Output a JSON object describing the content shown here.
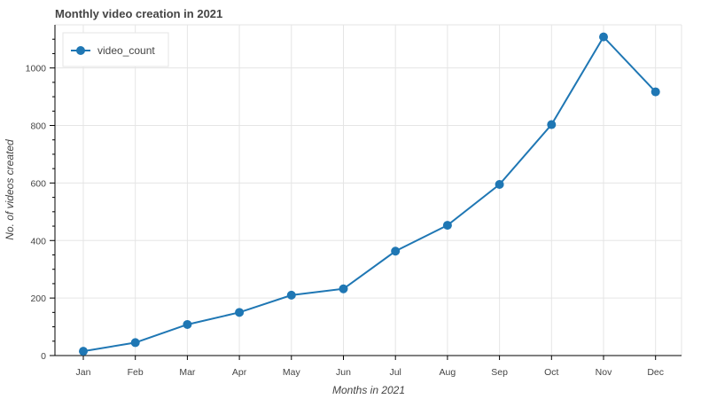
{
  "chart_data": {
    "type": "line",
    "title": "Monthly video creation in 2021",
    "xlabel": "Months in 2021",
    "ylabel": "No. of videos created",
    "categories": [
      "Jan",
      "Feb",
      "Mar",
      "Apr",
      "May",
      "Jun",
      "Jul",
      "Aug",
      "Sep",
      "Oct",
      "Nov",
      "Dec"
    ],
    "series": [
      {
        "name": "video_count",
        "values": [
          15,
          45,
          108,
          150,
          210,
          232,
          363,
          453,
          595,
          803,
          1108,
          917
        ],
        "color": "#1f77b4"
      }
    ],
    "ylim": [
      0,
      1150
    ],
    "yticks": [
      0,
      200,
      400,
      600,
      800,
      1000
    ],
    "grid": true,
    "legend_position": "top-left"
  }
}
